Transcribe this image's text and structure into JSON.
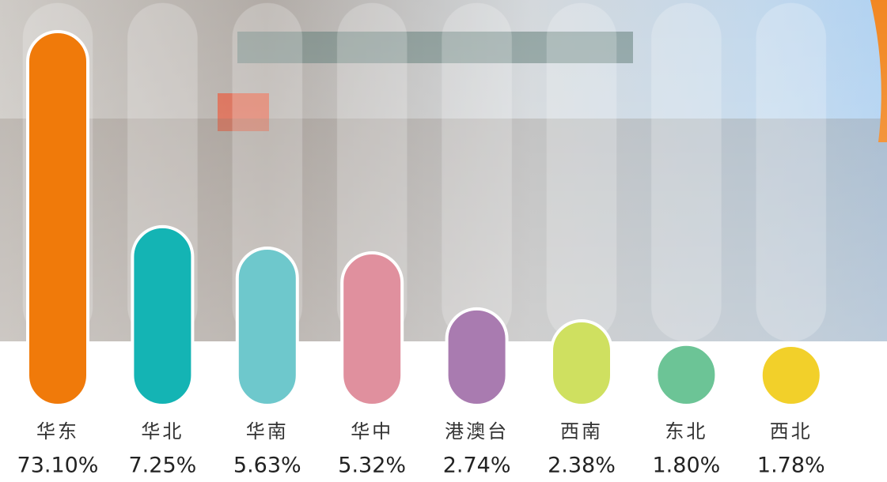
{
  "chart_data": {
    "type": "bar",
    "scale": "log",
    "categories": [
      "华东",
      "华北",
      "华南",
      "华中",
      "港澳台",
      "西南",
      "东北",
      "西北"
    ],
    "values": [
      73.1,
      7.25,
      5.63,
      5.32,
      2.74,
      2.38,
      1.8,
      1.78
    ],
    "value_labels": [
      "73.10%",
      "7.25%",
      "5.63%",
      "5.32%",
      "2.74%",
      "2.38%",
      "1.80%",
      "1.78%"
    ],
    "colors": [
      "#f07a0a",
      "#14b4b4",
      "#6ec8cc",
      "#e0909e",
      "#a97bb0",
      "#cfe060",
      "#6cc496",
      "#f2d02a"
    ]
  }
}
